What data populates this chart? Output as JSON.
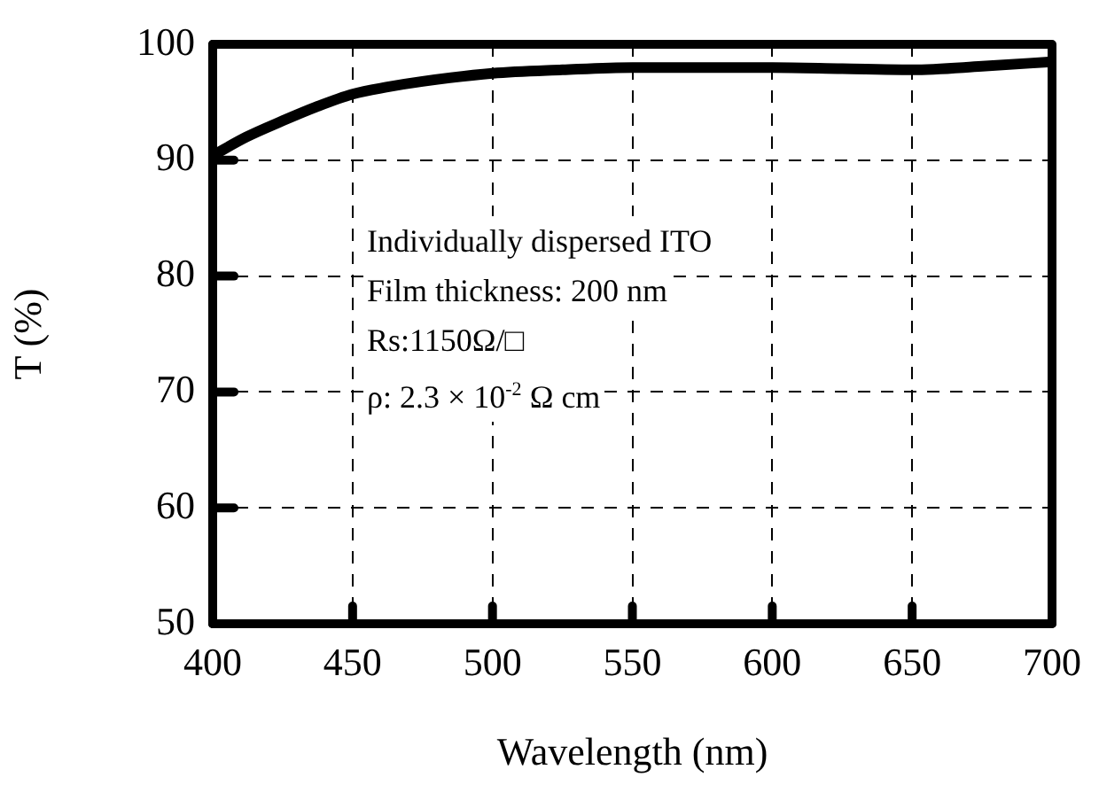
{
  "chart_data": {
    "type": "line",
    "xlabel": "Wavelength (nm)",
    "ylabel": "T (%)",
    "x": [
      400,
      412,
      425,
      437,
      450,
      462,
      475,
      500,
      525,
      550,
      575,
      600,
      625,
      650,
      675,
      700
    ],
    "series": [
      {
        "color": "#000000",
        "values": [
          90.4,
          92.0,
          93.4,
          94.6,
          95.7,
          96.3,
          96.8,
          97.5,
          97.8,
          98.0,
          98.0,
          98.0,
          97.9,
          97.8,
          98.1,
          98.5
        ]
      }
    ],
    "xlim": [
      400,
      700
    ],
    "xticks": [
      400,
      450,
      500,
      550,
      600,
      650,
      700
    ],
    "ylim": [
      50,
      100
    ],
    "yticks": [
      50,
      60,
      70,
      80,
      90,
      100
    ],
    "grid": true,
    "legend": false,
    "marker": "none",
    "line_style": "solid",
    "annotations": [
      "Individually dispersed ITO",
      "Film thickness: 200 nm",
      "Rs:1150Ω/□",
      "ρ: 2.3 × 10$^{-2}$ Ω cm"
    ]
  }
}
